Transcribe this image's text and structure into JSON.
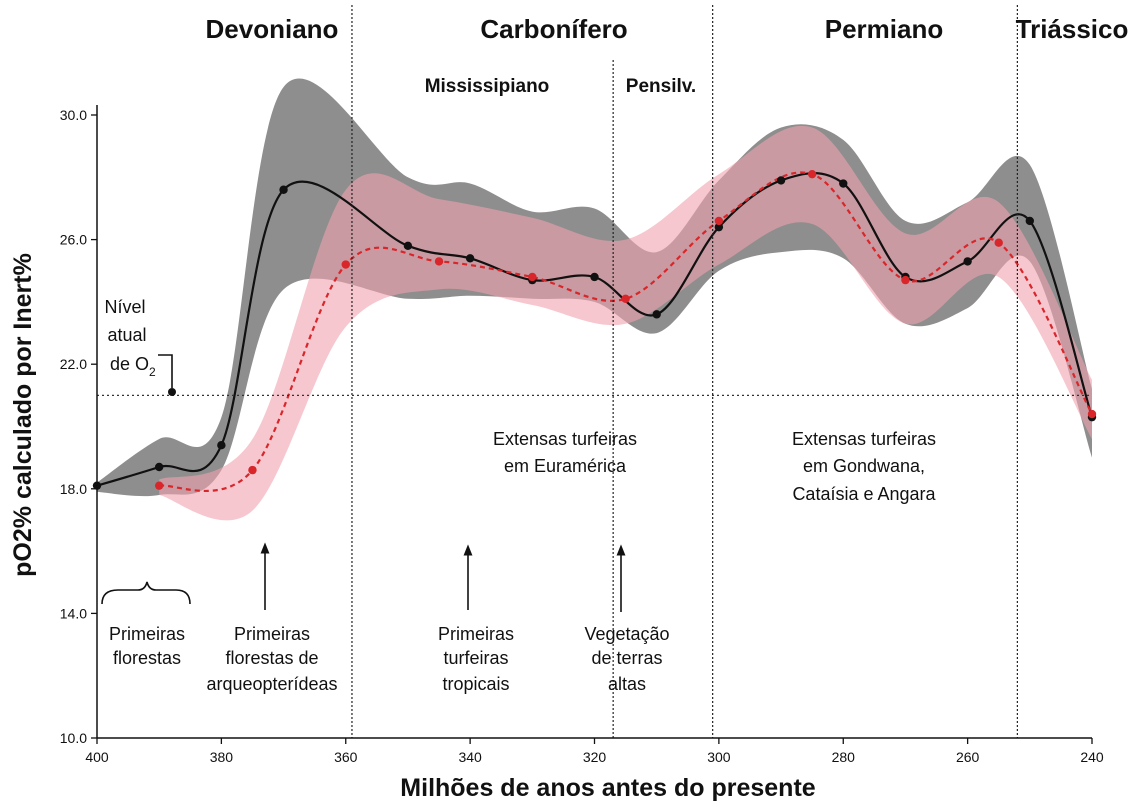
{
  "chart_data": {
    "type": "line",
    "xlabel": "Milhões de anos antes do presente",
    "ylabel": "pO2% calculado por Inert%",
    "xlim": [
      400,
      240
    ],
    "ylim": [
      10.0,
      30.0
    ],
    "x_ticks": [
      "400",
      "380",
      "360",
      "340",
      "320",
      "300",
      "280",
      "260",
      "240"
    ],
    "y_ticks": [
      "10.0",
      "14.0",
      "18.0",
      "22.0",
      "26.0",
      "30.0"
    ],
    "reference_line": {
      "y": 21.0,
      "label_lines": [
        "Nível",
        "atual",
        "de O"
      ],
      "label_subscript": "2"
    },
    "period_boundaries": [
      359,
      317,
      301,
      252
    ],
    "periods": [
      "Devoniano",
      "Carbonífero",
      "Permiano",
      "Triássico"
    ],
    "subperiods": [
      "Mississipiano",
      "Pensilv."
    ],
    "series": [
      {
        "color": "#111111",
        "band_color": "#7a7a7a",
        "line_style": "solid",
        "x": [
          400,
          390,
          380,
          370,
          350,
          340,
          330,
          320,
          310,
          300,
          290,
          280,
          270,
          260,
          250,
          240
        ],
        "y": [
          18.1,
          18.7,
          19.4,
          27.6,
          25.8,
          25.4,
          24.7,
          24.8,
          23.6,
          26.4,
          27.9,
          27.8,
          24.8,
          25.3,
          26.6,
          20.3
        ],
        "band_upper": [
          18.2,
          19.6,
          20.3,
          30.9,
          28.0,
          27.8,
          26.9,
          27.0,
          25.6,
          27.9,
          29.6,
          29.2,
          26.6,
          27.2,
          28.4,
          21.2
        ],
        "band_lower": [
          17.9,
          17.8,
          18.6,
          24.4,
          24.1,
          24.2,
          24.1,
          24.0,
          23.0,
          25.0,
          25.6,
          25.4,
          23.3,
          23.8,
          25.3,
          19.0
        ]
      },
      {
        "color": "#d8262b",
        "band_color": "#f0a2ad",
        "line_style": "dashed",
        "x": [
          390,
          375,
          360,
          345,
          330,
          315,
          300,
          285,
          270,
          255,
          240
        ],
        "y": [
          18.1,
          18.6,
          25.2,
          25.3,
          24.8,
          24.1,
          26.6,
          28.1,
          24.7,
          25.9,
          20.4
        ],
        "band_upper": [
          18.3,
          19.6,
          27.6,
          27.3,
          26.7,
          26.0,
          28.1,
          29.6,
          26.2,
          27.2,
          21.5
        ],
        "band_lower": [
          17.8,
          17.3,
          23.2,
          24.4,
          23.9,
          23.3,
          25.2,
          26.5,
          23.3,
          24.8,
          19.6
        ]
      }
    ],
    "annotations": [
      {
        "lines": [
          "Primeiras",
          "florestas"
        ]
      },
      {
        "lines": [
          "Primeiras",
          "florestas de",
          "arqueopterídeas"
        ]
      },
      {
        "lines": [
          "Primeiras",
          "turfeiras",
          "tropicais"
        ]
      },
      {
        "lines": [
          "Vegetação",
          "de terras",
          "altas"
        ]
      },
      {
        "lines": [
          "Extensas turfeiras",
          "em Euramérica"
        ]
      },
      {
        "lines": [
          "Extensas turfeiras",
          "em Gondwana,",
          "Cataísia e Angara"
        ]
      }
    ]
  }
}
